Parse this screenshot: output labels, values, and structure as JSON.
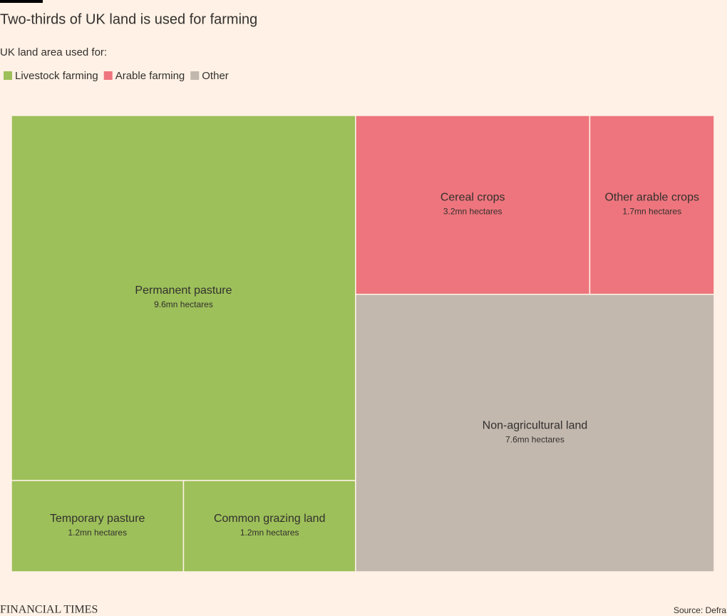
{
  "chart_data": {
    "type": "treemap",
    "title": "Two-thirds of UK land is used for farming",
    "subtitle": "UK land area used for:",
    "series": [
      {
        "name": "Livestock farming",
        "color": "#9dc05a",
        "categories": [
          "Permanent pasture",
          "Temporary pasture",
          "Common grazing land"
        ],
        "values": [
          9.6,
          1.2,
          1.2
        ],
        "value_labels": [
          "9.6mn hectares",
          "1.2mn hectares",
          "1.2mn hectares"
        ]
      },
      {
        "name": "Arable farming",
        "color": "#ee757d",
        "categories": [
          "Cereal crops",
          "Other arable crops"
        ],
        "values": [
          3.2,
          1.7
        ],
        "value_labels": [
          "3.2mn hectares",
          "1.7mn hectares"
        ]
      },
      {
        "name": "Other",
        "color": "#c2b8ae",
        "categories": [
          "Non-agricultural land"
        ],
        "values": [
          7.6
        ],
        "value_labels": [
          "7.6mn hectares"
        ]
      }
    ],
    "brand": "FINANCIAL TIMES",
    "source": "Source: Defra"
  }
}
